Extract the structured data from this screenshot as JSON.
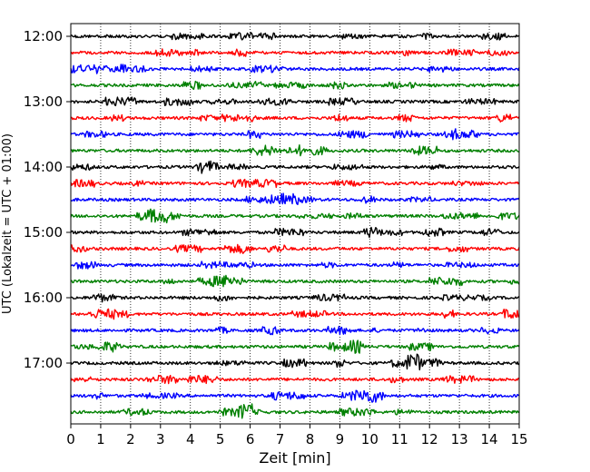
{
  "chart_data": {
    "type": "line",
    "title": "",
    "xlabel": "Zeit  [min]",
    "ylabel": "UTC (Lokalzeit = UTC + 01:00)",
    "xlim": [
      0,
      15
    ],
    "x_ticks": [
      0,
      1,
      2,
      3,
      4,
      5,
      6,
      7,
      8,
      9,
      10,
      11,
      12,
      13,
      14,
      15
    ],
    "y_tick_labels": [
      "12:00",
      "13:00",
      "14:00",
      "15:00",
      "16:00",
      "17:00"
    ],
    "grid": "vertical dotted",
    "trace_colors": [
      "#000000",
      "#ff0000",
      "#0000ff",
      "#008000"
    ],
    "traces": [
      {
        "start": "12:00",
        "color": "#000000"
      },
      {
        "start": "12:15",
        "color": "#ff0000"
      },
      {
        "start": "12:30",
        "color": "#0000ff"
      },
      {
        "start": "12:45",
        "color": "#008000"
      },
      {
        "start": "13:00",
        "color": "#000000"
      },
      {
        "start": "13:15",
        "color": "#ff0000"
      },
      {
        "start": "13:30",
        "color": "#0000ff"
      },
      {
        "start": "13:45",
        "color": "#008000"
      },
      {
        "start": "14:00",
        "color": "#000000"
      },
      {
        "start": "14:15",
        "color": "#ff0000"
      },
      {
        "start": "14:30",
        "color": "#0000ff"
      },
      {
        "start": "14:45",
        "color": "#008000"
      },
      {
        "start": "15:00",
        "color": "#000000"
      },
      {
        "start": "15:15",
        "color": "#ff0000"
      },
      {
        "start": "15:30",
        "color": "#0000ff"
      },
      {
        "start": "15:45",
        "color": "#008000"
      },
      {
        "start": "16:00",
        "color": "#000000"
      },
      {
        "start": "16:15",
        "color": "#ff0000"
      },
      {
        "start": "16:30",
        "color": "#0000ff"
      },
      {
        "start": "16:45",
        "color": "#008000"
      },
      {
        "start": "17:00",
        "color": "#000000"
      },
      {
        "start": "17:15",
        "color": "#ff0000"
      },
      {
        "start": "17:30",
        "color": "#0000ff"
      },
      {
        "start": "17:45",
        "color": "#008000"
      }
    ]
  }
}
